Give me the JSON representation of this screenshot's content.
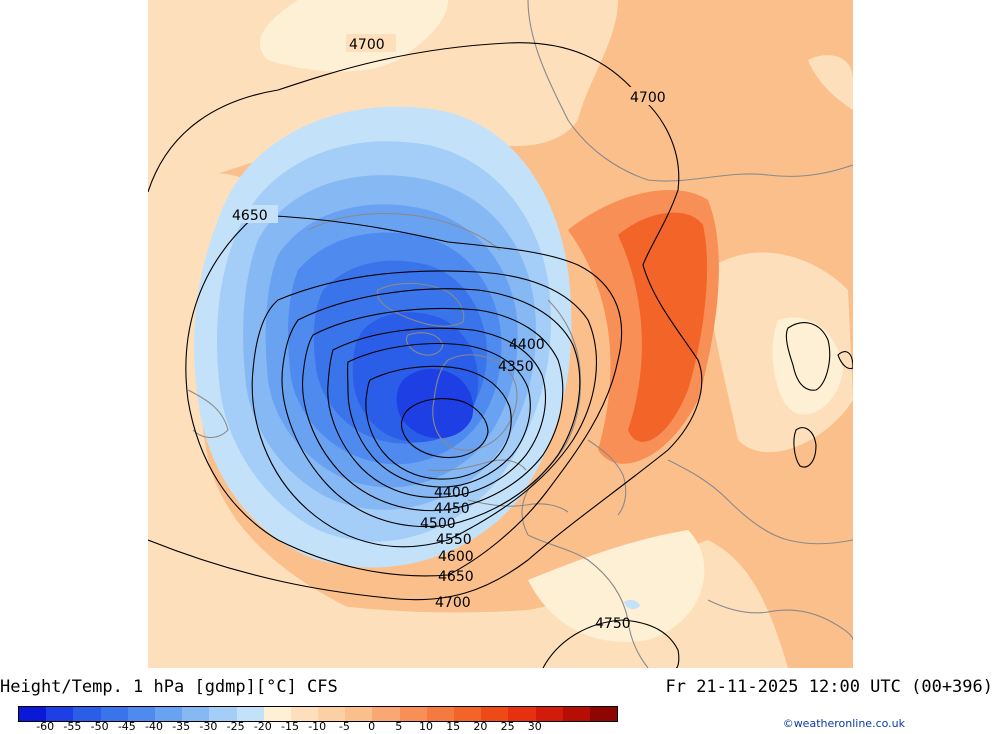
{
  "title": "Height/Temp. 1 hPa [gdmp][°C] CFS",
  "datetime": "Fr 21-11-2025 12:00 UTC (00+396)",
  "credit": "©weatheronline.co.uk",
  "contour_labels": [
    "4700",
    "4700",
    "4650",
    "4400",
    "4350",
    "4400",
    "4450",
    "4500",
    "4550",
    "4600",
    "4650",
    "4700",
    "4750"
  ],
  "legend": {
    "colors": [
      "#0a18d8",
      "#1d3fe3",
      "#2a5ee8",
      "#3a74ea",
      "#4f8bee",
      "#6aa2f2",
      "#86b8f4",
      "#a4cdf7",
      "#c3e2fa",
      "#fdf0d4",
      "#fde0bb",
      "#fcd0a4",
      "#fbbf8c",
      "#f9a873",
      "#f78f57",
      "#f47a3f",
      "#f26428",
      "#ee4a18",
      "#e6300f",
      "#d21b09",
      "#b60d05",
      "#8e0602"
    ],
    "ticks": [
      "-60",
      "-55",
      "-50",
      "-45",
      "-40",
      "-35",
      "-30",
      "-25",
      "-20",
      "-15",
      "-10",
      "-5",
      "0",
      "5",
      "10",
      "15",
      "20",
      "25",
      "30"
    ]
  },
  "fills": {
    "warm_bg": "#fbbf8c",
    "pale": "#fde0bb",
    "very_pale": "#fdf0d4",
    "orange_band": "#f78f57",
    "dark_orange": "#f26428",
    "light_blue": "#c3e2fa",
    "blue1": "#a4cdf7",
    "blue2": "#86b8f4",
    "blue3": "#6aa2f2",
    "blue4": "#4f8bee",
    "blue5": "#3a74ea",
    "blue6": "#2a5ee8",
    "blue7": "#1d3fe3"
  }
}
